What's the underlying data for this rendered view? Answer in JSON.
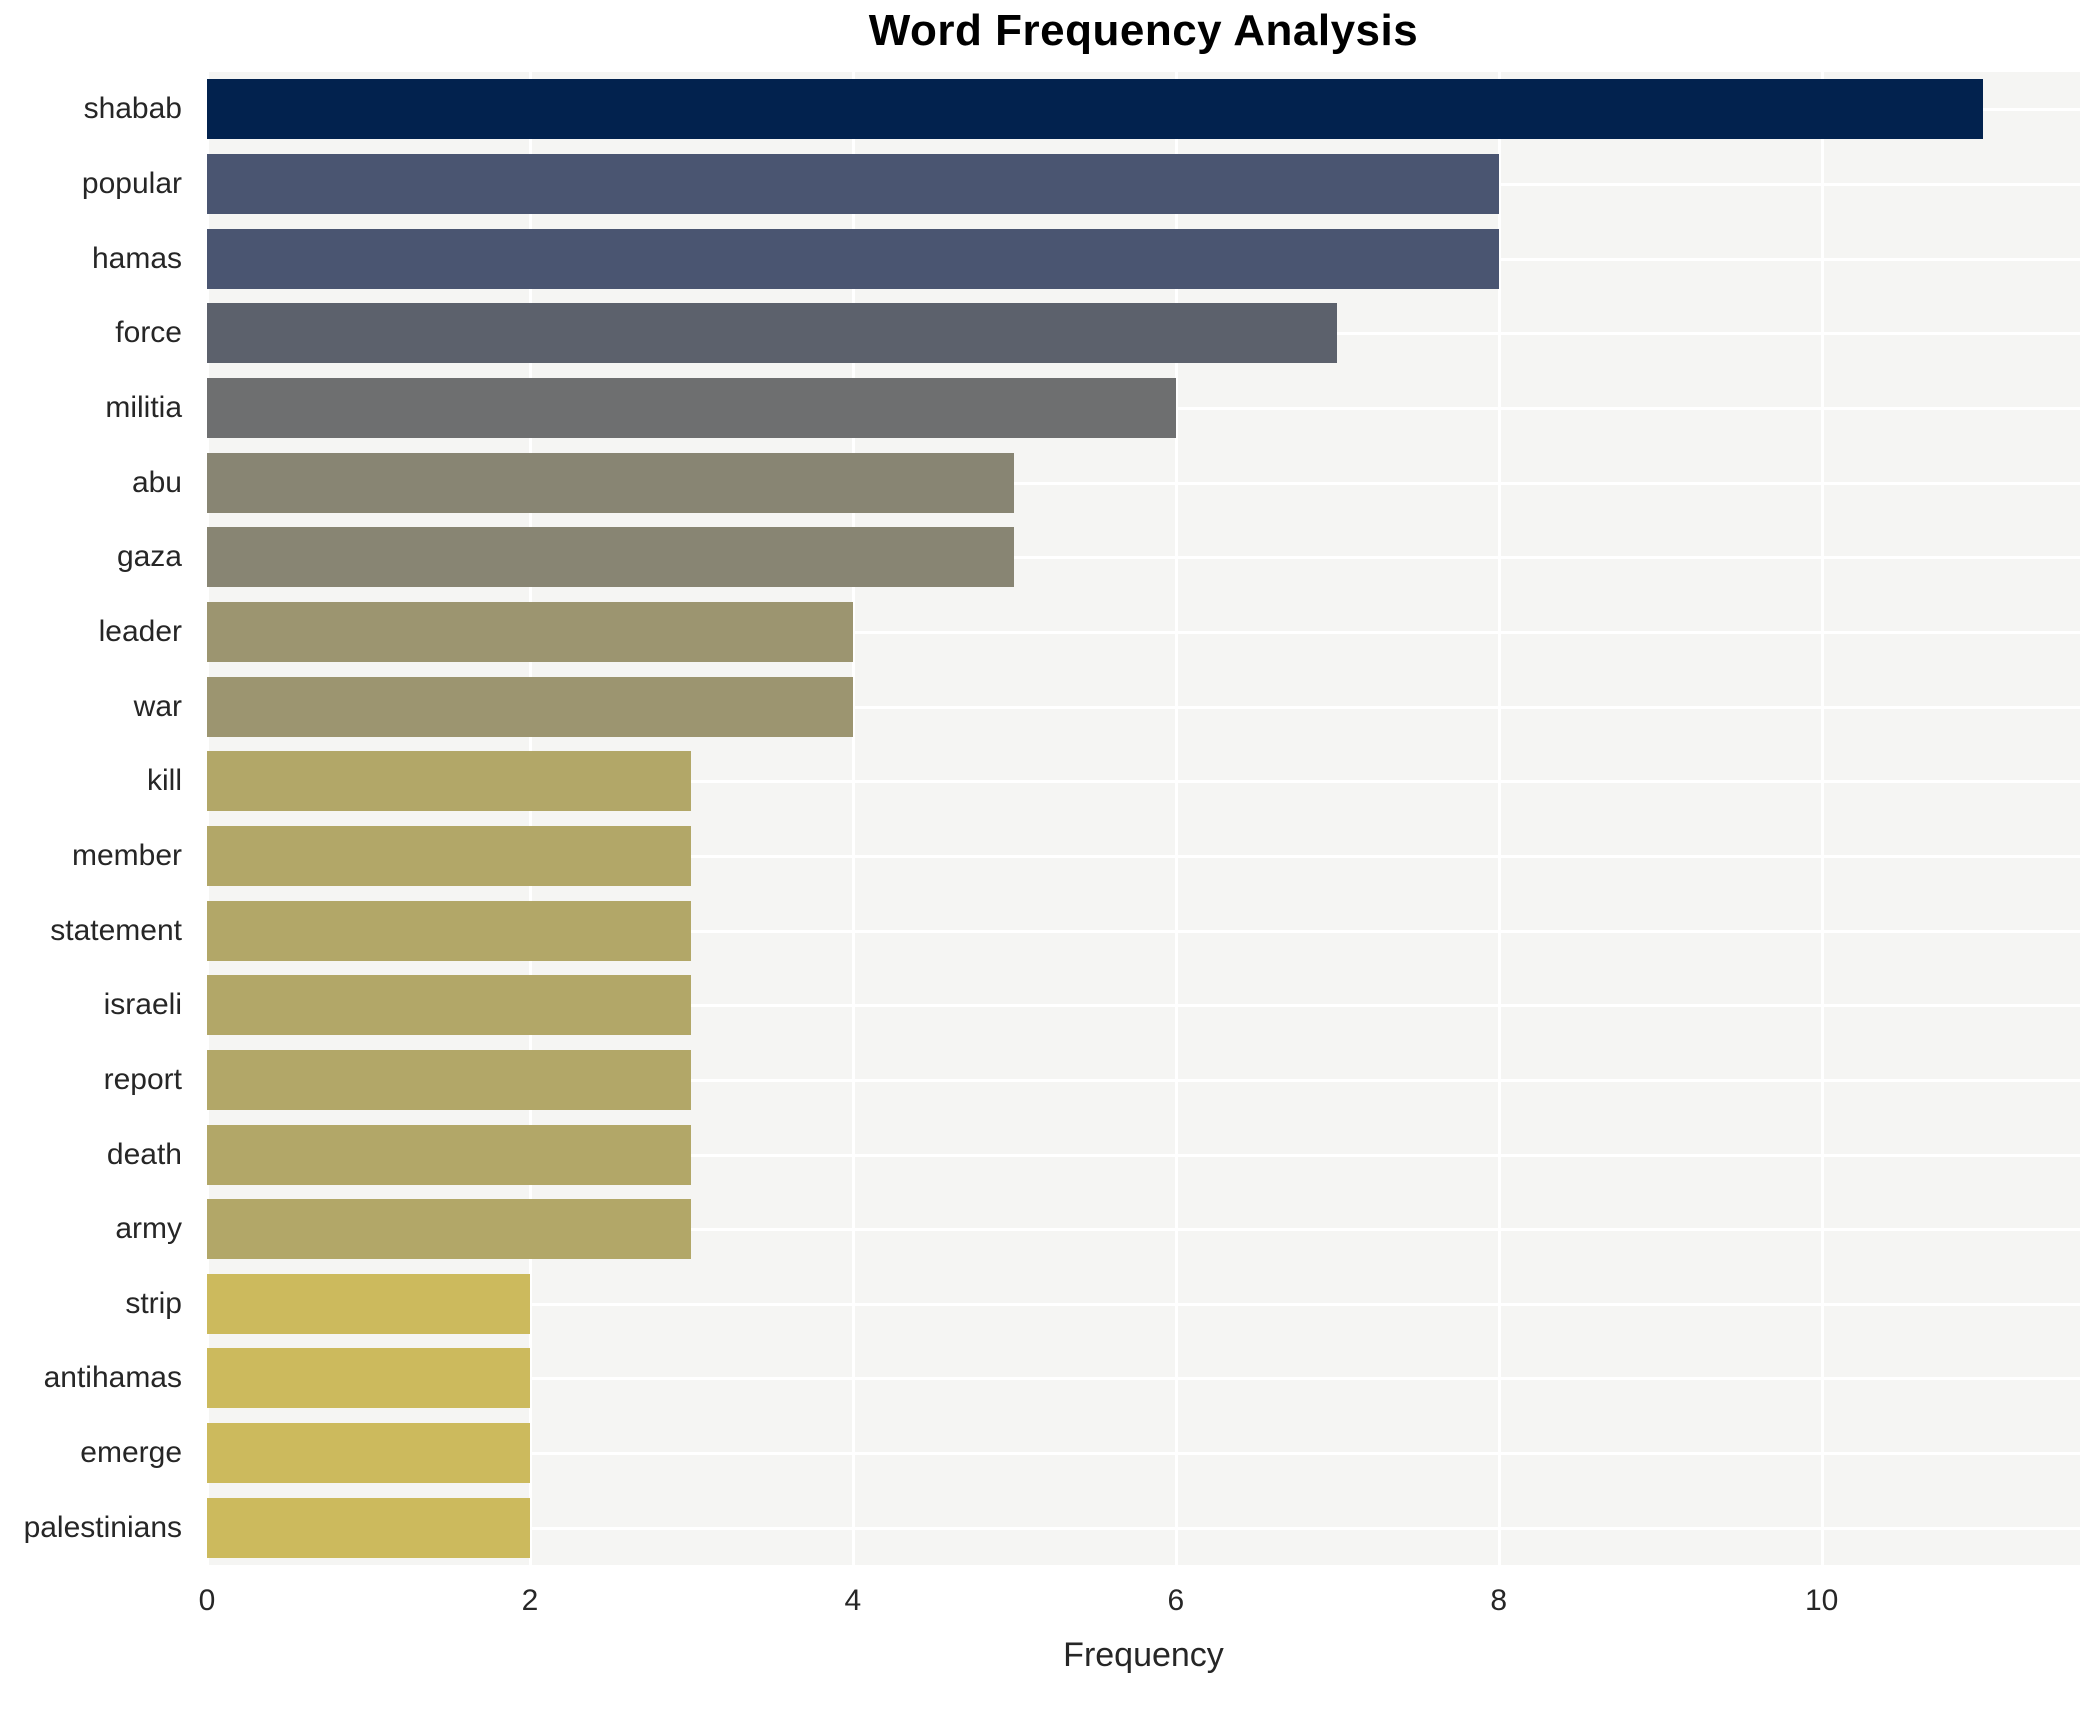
{
  "title": "Word Frequency Analysis",
  "chart_data": {
    "type": "bar",
    "orientation": "horizontal",
    "title": "Word Frequency Analysis",
    "xlabel": "Frequency",
    "ylabel": "",
    "categories": [
      "shabab",
      "popular",
      "hamas",
      "force",
      "militia",
      "abu",
      "gaza",
      "leader",
      "war",
      "kill",
      "member",
      "statement",
      "israeli",
      "report",
      "death",
      "army",
      "strip",
      "antihamas",
      "emerge",
      "palestinians"
    ],
    "values": [
      11,
      8,
      8,
      7,
      6,
      5,
      5,
      4,
      4,
      3,
      3,
      3,
      3,
      3,
      3,
      3,
      2,
      2,
      2,
      2
    ],
    "bar_colors": [
      "#02224e",
      "#4a5571",
      "#4a5571",
      "#5c616c",
      "#6e6f70",
      "#888573",
      "#888573",
      "#9c9570",
      "#9c9570",
      "#b2a768",
      "#b2a768",
      "#b2a768",
      "#b2a768",
      "#b2a768",
      "#b2a768",
      "#b2a768",
      "#ccba5d",
      "#ccba5d",
      "#ccba5d",
      "#ccba5d"
    ],
    "x_ticks": [
      0,
      2,
      4,
      6,
      8,
      10
    ],
    "xlim": [
      0,
      11.6
    ],
    "grid": true,
    "legend": false,
    "plot_background": "#f5f5f3",
    "grid_color": "#ffffff",
    "text_color": "#262626"
  }
}
